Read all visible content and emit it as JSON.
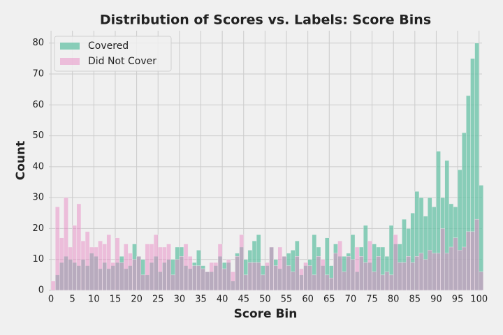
{
  "chart_data": {
    "type": "histogram",
    "title": "Distribution of Scores vs. Labels: Score Bins",
    "xlabel": "Score Bin",
    "ylabel": "Count",
    "bins": [
      0,
      1,
      2,
      3,
      4,
      5,
      6,
      7,
      8,
      9,
      10,
      11,
      12,
      13,
      14,
      15,
      16,
      17,
      18,
      19,
      20,
      21,
      22,
      23,
      24,
      25,
      26,
      27,
      28,
      29,
      30,
      31,
      32,
      33,
      34,
      35,
      36,
      37,
      38,
      39,
      40,
      41,
      42,
      43,
      44,
      45,
      46,
      47,
      48,
      49,
      50,
      51,
      52,
      53,
      54,
      55,
      56,
      57,
      58,
      59,
      60,
      61,
      62,
      63,
      64,
      65,
      66,
      67,
      68,
      69,
      70,
      71,
      72,
      73,
      74,
      75,
      76,
      77,
      78,
      79,
      80,
      81,
      82,
      83,
      84,
      85,
      86,
      87,
      88,
      89,
      90,
      91,
      92,
      93,
      94,
      95,
      96,
      97,
      98,
      99,
      100,
      101
    ],
    "series": [
      {
        "name": "Covered",
        "color": "#66c2a5",
        "opacity": 0.75,
        "values": [
          0,
          5,
          9,
          11,
          10,
          9,
          8,
          10,
          8,
          12,
          11,
          7,
          9,
          7,
          8,
          9,
          11,
          7,
          8,
          15,
          11,
          10,
          5,
          9,
          11,
          6,
          9,
          10,
          10,
          14,
          14,
          8,
          7,
          9,
          13,
          8,
          6,
          6,
          8,
          11,
          9,
          9,
          3,
          12,
          14,
          10,
          13,
          16,
          18,
          8,
          8,
          14,
          10,
          7,
          11,
          12,
          13,
          16,
          5,
          8,
          10,
          18,
          14,
          8,
          17,
          8,
          15,
          11,
          11,
          12,
          18,
          6,
          14,
          21,
          9,
          15,
          14,
          14,
          11,
          21,
          15,
          15,
          23,
          20,
          25,
          32,
          30,
          24,
          30,
          27,
          45,
          30,
          42,
          28,
          27,
          39,
          51,
          63,
          75,
          80,
          34
        ]
      },
      {
        "name": "Did Not Cover",
        "color": "#e78ac3",
        "opacity": 0.5,
        "values": [
          3,
          27,
          17,
          30,
          14,
          21,
          28,
          16,
          19,
          14,
          14,
          16,
          15,
          18,
          9,
          17,
          9,
          15,
          12,
          10,
          11,
          5,
          15,
          15,
          18,
          14,
          14,
          15,
          5,
          10,
          11,
          15,
          11,
          8,
          8,
          7,
          6,
          9,
          9,
          15,
          7,
          10,
          6,
          11,
          18,
          5,
          9,
          9,
          9,
          5,
          9,
          14,
          8,
          14,
          11,
          8,
          6,
          11,
          7,
          9,
          8,
          5,
          11,
          10,
          5,
          4,
          12,
          16,
          6,
          11,
          10,
          14,
          11,
          9,
          16,
          6,
          11,
          5,
          6,
          5,
          18,
          9,
          9,
          11,
          9,
          11,
          12,
          10,
          13,
          12,
          12,
          20,
          12,
          14,
          17,
          13,
          14,
          19,
          19,
          23,
          6
        ]
      }
    ],
    "xlim": [
      -0.5,
      100.7
    ],
    "ylim": [
      0,
      84
    ],
    "xticks": [
      0,
      5,
      10,
      15,
      20,
      25,
      30,
      35,
      40,
      45,
      50,
      55,
      60,
      65,
      70,
      75,
      80,
      85,
      90,
      95,
      100
    ],
    "yticks": [
      0,
      10,
      20,
      30,
      40,
      50,
      60,
      70,
      80
    ],
    "grid": true,
    "legend": "upper left"
  }
}
